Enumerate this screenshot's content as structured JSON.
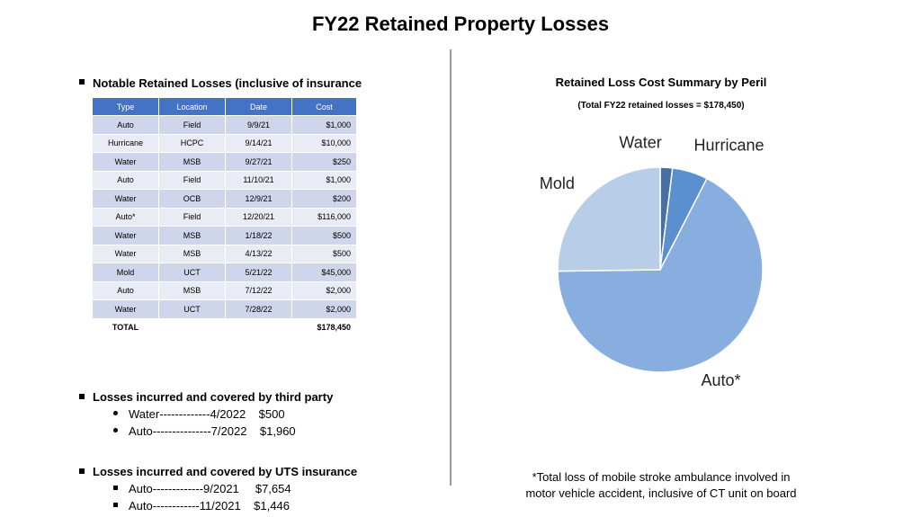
{
  "slide_title": "FY22 Retained Property Losses",
  "notable_heading": "Notable Retained Losses (inclusive of insurance deductibles)",
  "table": {
    "headers": [
      "Type",
      "Location",
      "Date",
      "Cost"
    ],
    "rows": [
      [
        "Auto",
        "Field",
        "9/9/21",
        "$1,000"
      ],
      [
        "Hurricane",
        "HCPC",
        "9/14/21",
        "$10,000"
      ],
      [
        "Water",
        "MSB",
        "9/27/21",
        "$250"
      ],
      [
        "Auto",
        "Field",
        "11/10/21",
        "$1,000"
      ],
      [
        "Water",
        "OCB",
        "12/9/21",
        "$200"
      ],
      [
        "Auto*",
        "Field",
        "12/20/21",
        "$116,000"
      ],
      [
        "Water",
        "MSB",
        "1/18/22",
        "$500"
      ],
      [
        "Water",
        "MSB",
        "4/13/22",
        "$500"
      ],
      [
        "Mold",
        "UCT",
        "5/21/22",
        "$45,000"
      ],
      [
        "Auto",
        "MSB",
        "7/12/22",
        "$2,000"
      ],
      [
        "Water",
        "UCT",
        "7/28/22",
        "$2,000"
      ]
    ],
    "total_label": "TOTAL",
    "total_value": "$178,450"
  },
  "third_party": {
    "heading": "Losses incurred and covered by third party",
    "items": [
      "Water-------------4/2022    $500",
      "Auto---------------7/2022    $1,960"
    ]
  },
  "uts": {
    "heading": "Losses incurred and covered by UTS insurance",
    "items": [
      "Auto-------------9/2021     $7,654",
      "Auto------------11/2021    $1,446"
    ]
  },
  "footnote": "*Total loss of mobile stroke ambulance involved in motor vehicle accident, inclusive of CT unit on board",
  "chart_data": {
    "type": "pie",
    "title": "Retained Loss Cost Summary by Peril",
    "subtitle": "(Total FY22 retained losses = $178,450)",
    "labels": [
      "Water",
      "Hurricane",
      "Auto*",
      "Mold"
    ],
    "values": [
      3450,
      10000,
      120000,
      45000
    ],
    "colors": [
      "#4a6fa5",
      "#5b8fcf",
      "#87aedf",
      "#b8cde8"
    ]
  }
}
